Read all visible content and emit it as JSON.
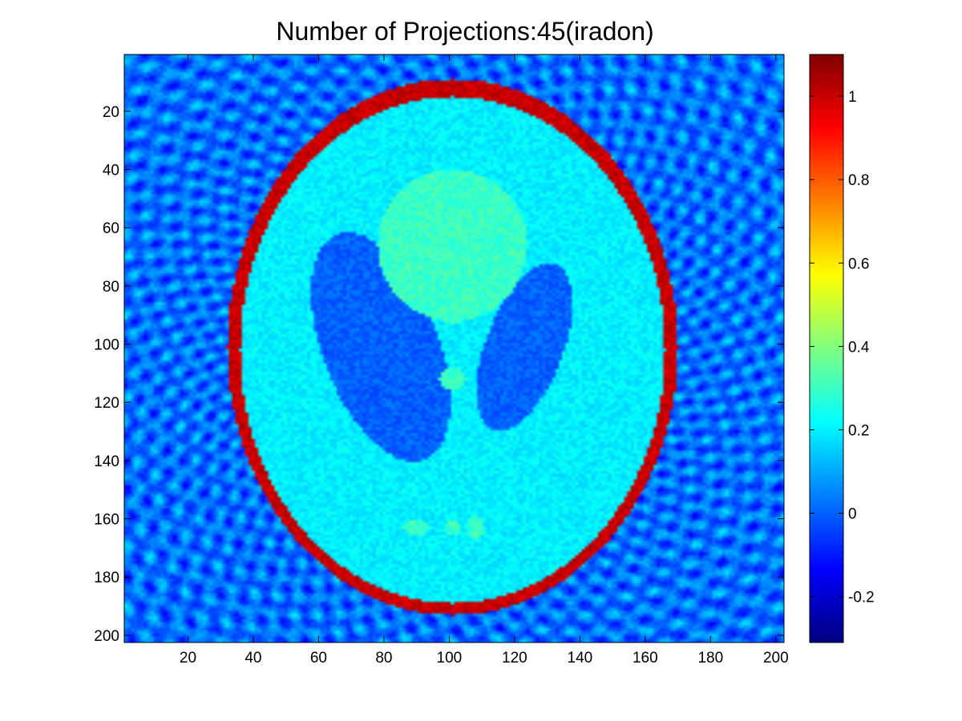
{
  "chart_data": {
    "type": "heatmap",
    "title": "Number of Projections:45(iradon)",
    "xlabel": "",
    "ylabel": "",
    "xlim": [
      0.5,
      202.5
    ],
    "ylim": [
      0.5,
      202.5
    ],
    "y_reversed": true,
    "image_size": [
      202,
      202
    ],
    "x_ticks": [
      20,
      40,
      60,
      80,
      100,
      120,
      140,
      160,
      180,
      200
    ],
    "y_ticks": [
      20,
      40,
      60,
      80,
      100,
      120,
      140,
      160,
      180,
      200
    ],
    "colormap": "jet",
    "colorbar": {
      "position": "right",
      "limits": [
        -0.31,
        1.1
      ],
      "ticks": [
        -0.2,
        0,
        0.2,
        0.4,
        0.6,
        0.8,
        1
      ]
    },
    "regions": [
      {
        "name": "outer skull ellipse",
        "center": [
          101,
          101
        ],
        "semi_axes": [
          69,
          92
        ],
        "angle_deg": 0,
        "value": 1.0
      },
      {
        "name": "brain ellipse",
        "center": [
          101,
          102
        ],
        "semi_axes": [
          65,
          87
        ],
        "angle_deg": 0,
        "value": 0.2
      },
      {
        "name": "left dark ellipse",
        "center": [
          79,
          101
        ],
        "semi_axes": [
          18,
          41
        ],
        "angle_deg": -18,
        "value": 0.0
      },
      {
        "name": "right dark ellipse",
        "center": [
          123,
          101
        ],
        "semi_axes": [
          12,
          30
        ],
        "angle_deg": 18,
        "value": 0.0
      },
      {
        "name": "upper bright ellipse",
        "center": [
          101,
          66
        ],
        "semi_axes": [
          23,
          26
        ],
        "angle_deg": 0,
        "value": 0.3
      },
      {
        "name": "small spot 1",
        "center": [
          101,
          89
        ],
        "semi_axes": [
          4,
          4
        ],
        "angle_deg": 0,
        "value": 0.3
      },
      {
        "name": "small spot 2",
        "center": [
          101,
          112
        ],
        "semi_axes": [
          4,
          4
        ],
        "angle_deg": 0,
        "value": 0.3
      },
      {
        "name": "small spot 3",
        "center": [
          90,
          163
        ],
        "semi_axes": [
          4,
          2.5
        ],
        "angle_deg": 0,
        "value": 0.3
      },
      {
        "name": "small spot 4",
        "center": [
          101,
          163
        ],
        "semi_axes": [
          2.5,
          2.5
        ],
        "angle_deg": 0,
        "value": 0.3
      },
      {
        "name": "small spot 5",
        "center": [
          108,
          163
        ],
        "semi_axes": [
          2.5,
          4
        ],
        "angle_deg": 0,
        "value": 0.3
      }
    ],
    "background_value": 0.0,
    "streak_artifacts": true
  }
}
